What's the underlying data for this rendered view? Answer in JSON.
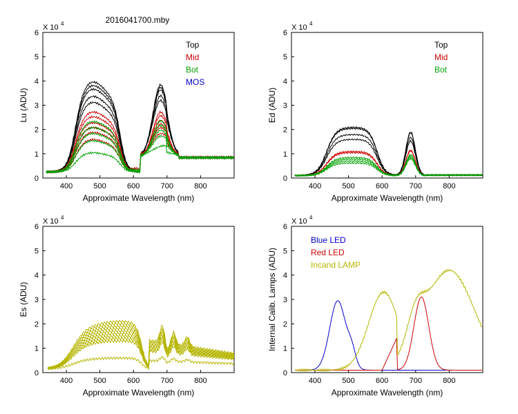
{
  "figure_title": "2016041700.mby",
  "chart_data": [
    {
      "id": "lu",
      "type": "line",
      "ylabel": "Lu (ADU)",
      "xlabel": "Approximate Wavelength (nm)",
      "multiplier": "X 10",
      "exponent": "4",
      "xlim": [
        330,
        900
      ],
      "ylim": [
        0,
        6
      ],
      "xticks": [
        400,
        500,
        600,
        700,
        800
      ],
      "yticks": [
        0,
        1,
        2,
        3,
        4,
        5,
        6
      ],
      "legend": [
        {
          "name": "Top",
          "color": "#000000"
        },
        {
          "name": "Mid",
          "color": "#cc0000"
        },
        {
          "name": "Bot",
          "color": "#00a000"
        },
        {
          "name": "MOS",
          "color": "#0000cc"
        }
      ],
      "families": [
        {
          "group": "Top",
          "color": "#000000",
          "shape": "lu",
          "peaks": [
            4.0,
            3.85,
            3.7,
            3.4,
            3.15
          ]
        },
        {
          "group": "Mid",
          "color": "#cc0000",
          "shape": "lu",
          "peaks": [
            2.75,
            2.55,
            2.3,
            2.1,
            1.9,
            1.6
          ]
        },
        {
          "group": "Bot",
          "color": "#00a000",
          "shape": "lu",
          "peaks": [
            2.35,
            2.1,
            1.85,
            1.55,
            1.05
          ]
        }
      ]
    },
    {
      "id": "ed",
      "type": "line",
      "ylabel": "Ed  (ADU)",
      "xlabel": "Approximate Wavelength (nm)",
      "multiplier": "X 10",
      "exponent": "4",
      "xlim": [
        330,
        900
      ],
      "ylim": [
        0,
        6
      ],
      "xticks": [
        400,
        500,
        600,
        700,
        800
      ],
      "yticks": [
        0,
        1,
        2,
        3,
        4,
        5,
        6
      ],
      "legend": [
        {
          "name": "Top",
          "color": "#000000"
        },
        {
          "name": "Mid",
          "color": "#cc0000"
        },
        {
          "name": "Bot",
          "color": "#00a000"
        }
      ],
      "families": [
        {
          "group": "Top",
          "color": "#000000",
          "shape": "ed",
          "peaks": [
            2.0,
            1.95,
            1.7,
            1.5
          ]
        },
        {
          "group": "Mid",
          "color": "#cc0000",
          "shape": "ed",
          "peaks": [
            1.0,
            0.95
          ]
        },
        {
          "group": "Bot",
          "color": "#00a000",
          "shape": "ed",
          "peaks": [
            0.75,
            0.68,
            0.6,
            0.52
          ]
        }
      ]
    },
    {
      "id": "es",
      "type": "line",
      "ylabel": "Es  (ADU)",
      "xlabel": "Approximate Wavelength (nm)",
      "multiplier": "X 10",
      "exponent": "4",
      "xlim": [
        330,
        900
      ],
      "ylim": [
        0,
        6
      ],
      "xticks": [
        400,
        500,
        600,
        700,
        800
      ],
      "yticks": [
        0,
        1,
        2,
        3,
        4,
        5,
        6
      ],
      "legend": [],
      "families": [
        {
          "group": "Es",
          "color": "#b5b500",
          "shape": "es",
          "peaks": [
            1.95,
            1.85,
            1.75,
            1.65,
            1.55,
            1.45,
            1.35,
            1.25,
            1.15,
            0.45
          ]
        }
      ]
    },
    {
      "id": "calib",
      "type": "line",
      "ylabel": "Internal Calib. Lamps (ADU)",
      "xlabel": "Approximate Wavelength (nm)",
      "multiplier": "X 10",
      "exponent": "4",
      "xlim": [
        330,
        900
      ],
      "ylim": [
        0,
        6
      ],
      "xticks": [
        400,
        500,
        600,
        700,
        800
      ],
      "yticks": [
        0,
        1,
        2,
        3,
        4,
        5,
        6
      ],
      "legend": [
        {
          "name": "Blue LED",
          "color": "#0000cc"
        },
        {
          "name": "Red LED",
          "color": "#cc0000"
        },
        {
          "name": "Incand LAMP",
          "color": "#b5b500"
        }
      ],
      "families": [
        {
          "group": "Blue LED",
          "color": "#0000cc",
          "shape": "blue",
          "peaks": [
            2.85
          ]
        },
        {
          "group": "Red LED",
          "color": "#cc0000",
          "shape": "red",
          "peaks": [
            3.0
          ]
        },
        {
          "group": "Incand LAMP",
          "color": "#b5b500",
          "shape": "lamp",
          "peaks": [
            4.1
          ]
        }
      ]
    }
  ]
}
